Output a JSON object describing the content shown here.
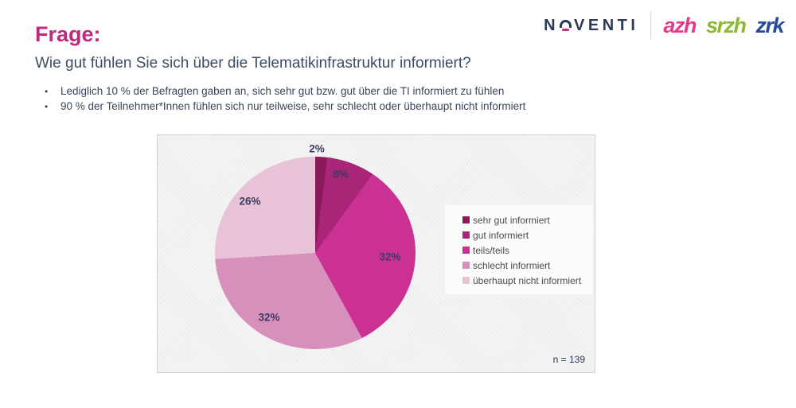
{
  "header": {
    "noventi": {
      "pre": "N",
      "post": "VENTI",
      "navy": "#2c3a55",
      "accent": "#c72b7e"
    },
    "brands": [
      {
        "label": "azh",
        "color": "#e23a8c"
      },
      {
        "label": "srzh",
        "color": "#8cb832"
      },
      {
        "label": "zrk",
        "color": "#28499c"
      }
    ]
  },
  "slide": {
    "title": "Frage:",
    "title_color": "#bf2a80",
    "question": "Wie gut fühlen Sie sich über die Telematikinfrastruktur informiert?",
    "bullets": [
      "Lediglich 10 % der Befragten gaben an, sich sehr gut bzw. gut über die TI informiert zu fühlen",
      "90 % der Teilnehmer*Innen fühlen sich nur teilweise, sehr schlecht oder überhaupt nicht informiert"
    ]
  },
  "chart_data": {
    "type": "pie",
    "categories": [
      "sehr gut informiert",
      "gut informiert",
      "teils/teils",
      "schlecht informiert",
      "überhaupt nicht informiert"
    ],
    "values": [
      2,
      8,
      32,
      32,
      26
    ],
    "unit": "%",
    "labels": [
      "2%",
      "8%",
      "32%",
      "32%",
      "26%"
    ],
    "colors": [
      "#8a1a5c",
      "#a82577",
      "#cb3093",
      "#d78fbb",
      "#e8c3d8"
    ],
    "start_angle_deg": 0,
    "direction": "clockwise",
    "legend_position": "right",
    "sample_note": "n = 139"
  }
}
